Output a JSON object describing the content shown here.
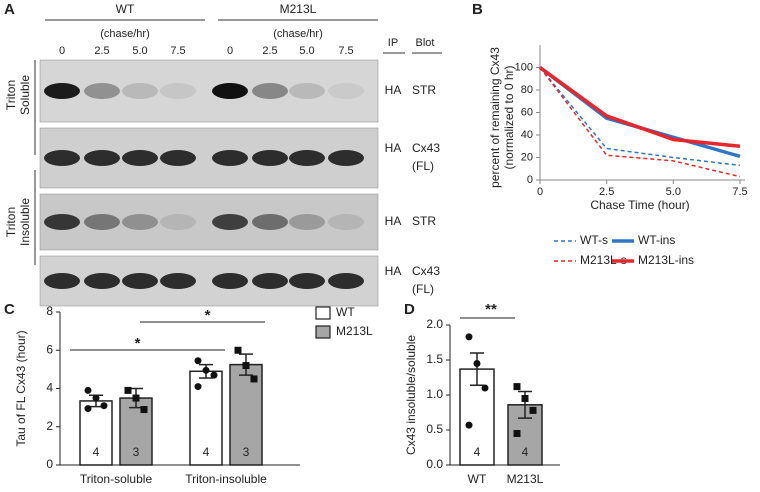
{
  "panels": [
    "A",
    "B",
    "C",
    "D"
  ],
  "blot": {
    "groups": [
      "WT",
      "M213L"
    ],
    "chase_label": "(chase/hr)",
    "lanes": [
      "0",
      "2.5",
      "5.0",
      "7.5"
    ],
    "column_headers": [
      "IP",
      "Blot"
    ],
    "fractions": [
      [
        "Triton",
        "Soluble"
      ],
      [
        "Triton",
        "Insoluble"
      ]
    ],
    "rows": [
      {
        "ip": "HA",
        "blot": [
          "STR"
        ]
      },
      {
        "ip": "HA",
        "blot": [
          "Cx43",
          "(FL)"
        ]
      },
      {
        "ip": "HA",
        "blot": [
          "STR"
        ]
      },
      {
        "ip": "HA",
        "blot": [
          "Cx43",
          "(FL)"
        ]
      }
    ]
  },
  "chart_data": [
    {
      "type": "line",
      "ylabel": [
        "percent of remaining Cx43",
        "(normalized to 0 hr)"
      ],
      "xlabel": "Chase Time (hour)",
      "x": [
        0,
        2.5,
        5,
        7.5
      ],
      "xlim": [
        0,
        7.5
      ],
      "xticks": [
        0,
        2.5,
        {
          "value": 5,
          "label": "5.0"
        },
        7.5
      ],
      "ylim": [
        0,
        120
      ],
      "yticks": [
        0,
        20,
        40,
        60,
        80,
        100
      ],
      "series": [
        {
          "name": "WT-s",
          "color": "#2e75c4",
          "dashed": true,
          "values": [
            100,
            28,
            20,
            13
          ]
        },
        {
          "name": "M213L-s",
          "color": "#e8262b",
          "dashed": true,
          "values": [
            100,
            22,
            17,
            3
          ]
        },
        {
          "name": "WT-ins",
          "color": "#2e75c4",
          "dashed": false,
          "values": [
            100,
            55,
            38,
            21
          ]
        },
        {
          "name": "M213L-ins",
          "color": "#e8262b",
          "dashed": false,
          "values": [
            100,
            57,
            36,
            30
          ]
        }
      ]
    },
    {
      "type": "bar",
      "ylabel": "Tau of FL Cx43 (hour)",
      "categories": [
        "Triton-soluble",
        "Triton-insoluble"
      ],
      "ylim": [
        0,
        8
      ],
      "yticks": [
        0,
        2,
        4,
        6,
        8
      ],
      "series": [
        {
          "name": "WT",
          "color": "#ffffff",
          "values": [
            3.35,
            4.9
          ],
          "errors": [
            0.3,
            0.35
          ],
          "n": [
            4,
            4
          ],
          "points": [
            [
              3.9,
              3.5,
              3.1,
              2.95
            ],
            [
              5.45,
              4.95,
              4.7,
              4.1
            ]
          ]
        },
        {
          "name": "M213L",
          "color": "#a6a6a6",
          "values": [
            3.5,
            5.25
          ],
          "errors": [
            0.5,
            0.55
          ],
          "n": [
            3,
            3
          ],
          "points": [
            [
              3.9,
              3.5,
              2.9
            ],
            [
              6.0,
              5.2,
              4.5
            ]
          ]
        }
      ],
      "significance": [
        "*",
        "*"
      ]
    },
    {
      "type": "bar",
      "ylabel": "Cx43 insoluble/soluble",
      "categories": [
        "WT",
        "M213L"
      ],
      "ylim": [
        0,
        2
      ],
      "yticks": [
        {
          "value": 0,
          "label": "0.0"
        },
        {
          "value": 0.5,
          "label": "0.5"
        },
        {
          "value": 1,
          "label": "1.0"
        },
        {
          "value": 1.5,
          "label": "1.5"
        },
        {
          "value": 2,
          "label": "2.0"
        }
      ],
      "values": [
        1.37,
        0.86
      ],
      "errors": [
        0.23,
        0.19
      ],
      "n": [
        4,
        4
      ],
      "colors": [
        "#ffffff",
        "#a6a6a6"
      ],
      "points": [
        [
          1.83,
          1.45,
          1.1,
          0.57
        ],
        [
          1.12,
          0.95,
          0.78,
          0.45
        ]
      ],
      "significance": [
        "**"
      ]
    }
  ]
}
